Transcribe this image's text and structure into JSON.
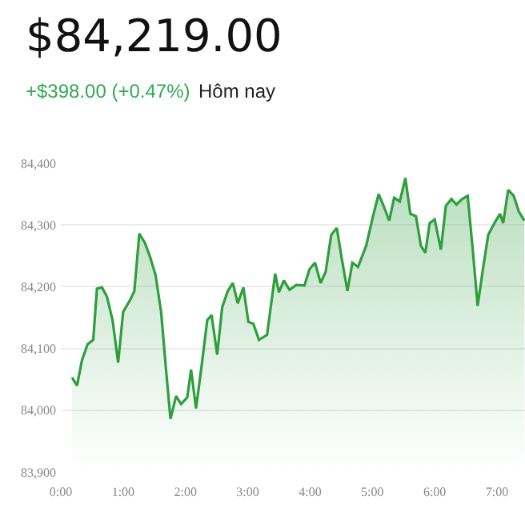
{
  "chart_data": {
    "type": "area",
    "title": "$84,219.00",
    "subtitle": "+$398.00 (+0.47%)",
    "annotations": [
      "Hôm nay"
    ],
    "x": [
      0.18,
      0.26,
      0.34,
      0.43,
      0.52,
      0.58,
      0.66,
      0.74,
      0.83,
      0.92,
      1.0,
      1.12,
      1.18,
      1.26,
      1.35,
      1.43,
      1.52,
      1.61,
      1.69,
      1.76,
      1.85,
      1.93,
      2.03,
      2.09,
      2.17,
      2.26,
      2.35,
      2.42,
      2.51,
      2.59,
      2.68,
      2.76,
      2.84,
      2.93,
      3.01,
      3.09,
      3.18,
      3.31,
      3.44,
      3.5,
      3.58,
      3.67,
      3.78,
      3.91,
      3.99,
      4.08,
      4.17,
      4.25,
      4.34,
      4.43,
      4.51,
      4.6,
      4.68,
      4.77,
      4.9,
      5.01,
      5.1,
      5.18,
      5.27,
      5.35,
      5.44,
      5.53,
      5.61,
      5.7,
      5.78,
      5.85,
      5.92,
      6.0,
      6.1,
      6.18,
      6.27,
      6.35,
      6.44,
      6.53,
      6.61,
      6.69,
      6.78,
      6.86,
      6.97,
      7.05,
      7.1,
      7.18,
      7.27,
      7.35,
      7.44
    ],
    "series": [
      {
        "color": "#2e9e3e",
        "values": [
          84053,
          84040,
          84081,
          84107,
          84114,
          84197,
          84199,
          84184,
          84146,
          84077,
          84159,
          84180,
          84193,
          84286,
          84271,
          84249,
          84219,
          84159,
          84064,
          83986,
          84023,
          84010,
          84021,
          84066,
          84003,
          84072,
          84146,
          84154,
          84090,
          84167,
          84193,
          84206,
          84173,
          84199,
          84143,
          84140,
          84114,
          84122,
          84221,
          84191,
          84210,
          84195,
          84203,
          84202,
          84228,
          84239,
          84206,
          84224,
          84284,
          84295,
          84245,
          84193,
          84239,
          84232,
          84266,
          84314,
          84350,
          84331,
          84307,
          84344,
          84338,
          84376,
          84318,
          84314,
          84266,
          84255,
          84303,
          84309,
          84260,
          84331,
          84342,
          84333,
          84342,
          84347,
          84262,
          84169,
          84232,
          84284,
          84305,
          84318,
          84303,
          84357,
          84347,
          84322,
          84307
        ]
      }
    ],
    "xlim": [
      0,
      7.45
    ],
    "xticks": [
      {
        "value": 0,
        "label": "0:00"
      },
      {
        "value": 1,
        "label": "1:00"
      },
      {
        "value": 2,
        "label": "2:00"
      },
      {
        "value": 3,
        "label": "3:00"
      },
      {
        "value": 4,
        "label": "4:00"
      },
      {
        "value": 5,
        "label": "5:00"
      },
      {
        "value": 6,
        "label": "6:00"
      },
      {
        "value": 7,
        "label": "7:00"
      }
    ],
    "ylim": [
      83900,
      84400
    ],
    "yticks": [
      {
        "value": 83900,
        "label": "83,900"
      },
      {
        "value": 84000,
        "label": "84,000"
      },
      {
        "value": 84100,
        "label": "84,100"
      },
      {
        "value": 84200,
        "label": "84,200"
      },
      {
        "value": 84300,
        "label": "84,300"
      },
      {
        "value": 84400,
        "label": "84,400"
      }
    ],
    "grid": "y"
  }
}
